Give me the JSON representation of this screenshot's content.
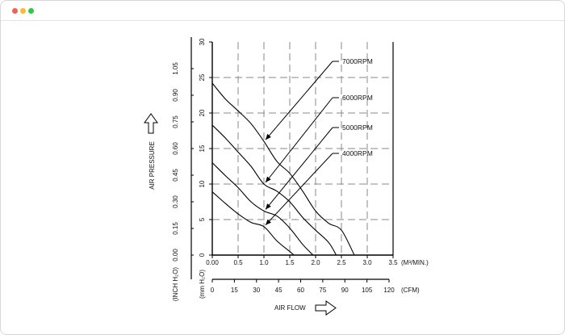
{
  "window": {
    "dots": [
      "close-dot",
      "minimize-dot",
      "maximize-dot"
    ],
    "colors": {
      "close": "#f25f57",
      "minimize": "#f6bd2e",
      "maximize": "#2fc840"
    }
  },
  "chart_data": {
    "type": "line",
    "title": "",
    "ylabel": "AIR PRESSURE",
    "xlabel": "AIR FLOW",
    "mm_h2o_label": "(mm H₂O)",
    "inch_h2o_label": "(INCH H₂O)",
    "m3_unit_label": "(M³/MIN.)",
    "cfm_unit_label": "(CFM)",
    "xlim": [
      0,
      3.5
    ],
    "ylim": [
      0,
      30
    ],
    "grid": true,
    "x_ticks": [
      "0.00",
      "0.5",
      "1.0",
      "1.5",
      "2.0",
      "2.5",
      "3.0",
      "3.5"
    ],
    "y_ticks_mm": [
      "0",
      "5",
      "10",
      "15",
      "20",
      "25",
      "30"
    ],
    "y_ticks_inch": [
      "0.00",
      "0.15",
      "0.30",
      "0.45",
      "0.60",
      "0.75",
      "0.90",
      "1.05"
    ],
    "cfm_ticks": [
      "0",
      "15",
      "30",
      "45",
      "60",
      "75",
      "90",
      "105",
      "120"
    ],
    "series": [
      {
        "name": "7000RPM",
        "x": [
          0.0,
          0.25,
          0.5,
          0.75,
          1.0,
          1.25,
          1.5,
          1.75,
          2.0,
          2.25,
          2.5,
          2.75
        ],
        "y": [
          24.2,
          22.0,
          20.3,
          18.5,
          16.0,
          13.2,
          11.5,
          9.0,
          6.2,
          4.5,
          3.5,
          0.0
        ]
      },
      {
        "name": "6000RPM",
        "x": [
          0.0,
          0.25,
          0.5,
          0.75,
          1.0,
          1.25,
          1.5,
          1.75,
          2.0,
          2.25,
          2.4
        ],
        "y": [
          18.3,
          16.5,
          14.5,
          12.5,
          10.0,
          9.0,
          7.5,
          5.3,
          3.5,
          1.8,
          0.0
        ]
      },
      {
        "name": "5000RPM",
        "x": [
          0.0,
          0.25,
          0.5,
          0.75,
          1.0,
          1.25,
          1.5,
          1.75,
          1.95
        ],
        "y": [
          13.0,
          11.2,
          9.5,
          7.5,
          6.2,
          5.5,
          3.8,
          1.5,
          0.0
        ]
      },
      {
        "name": "4000RPM",
        "x": [
          0.0,
          0.25,
          0.5,
          0.75,
          1.0,
          1.25,
          1.5,
          1.58
        ],
        "y": [
          8.9,
          7.3,
          5.8,
          4.6,
          4.0,
          2.0,
          0.5,
          0.0
        ]
      }
    ]
  }
}
